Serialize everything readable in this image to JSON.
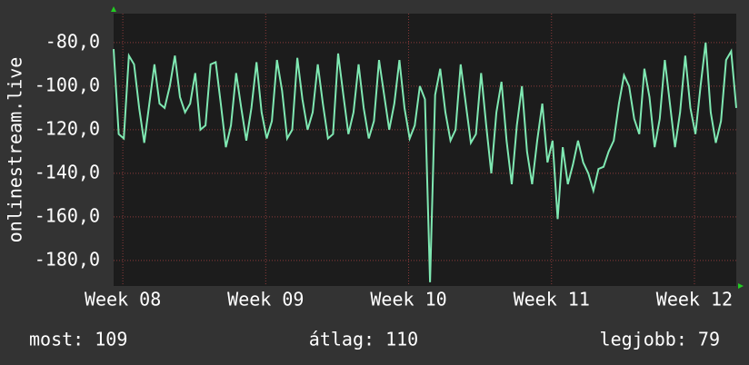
{
  "chart_data": {
    "type": "line",
    "y_label": "onlinestream.live",
    "color": "#7fe8b2",
    "grid": true,
    "ylim": [
      -191.7,
      -66.7
    ],
    "yticks": [
      {
        "value": -80,
        "label": "-80,0"
      },
      {
        "value": -100,
        "label": "-100,0"
      },
      {
        "value": -120,
        "label": "-120,0"
      },
      {
        "value": -140,
        "label": "-140,0"
      },
      {
        "value": -160,
        "label": "-160,0"
      },
      {
        "value": -180,
        "label": "-180,0"
      }
    ],
    "xlim": [
      0,
      30.5
    ],
    "xticks": [
      {
        "value": 0.45,
        "label": "Week 08"
      },
      {
        "value": 7.45,
        "label": "Week 09"
      },
      {
        "value": 14.45,
        "label": "Week 10"
      },
      {
        "value": 21.45,
        "label": "Week 11"
      },
      {
        "value": 28.45,
        "label": "Week 12"
      }
    ],
    "x": [
      0,
      0.25,
      0.5,
      0.75,
      1,
      1.25,
      1.5,
      1.75,
      2,
      2.25,
      2.5,
      2.75,
      3,
      3.25,
      3.5,
      3.75,
      4,
      4.25,
      4.5,
      4.75,
      5,
      5.25,
      5.5,
      5.75,
      6,
      6.25,
      6.5,
      6.75,
      7,
      7.25,
      7.5,
      7.75,
      8,
      8.25,
      8.5,
      8.75,
      9,
      9.25,
      9.5,
      9.75,
      10,
      10.25,
      10.5,
      10.75,
      11,
      11.25,
      11.5,
      11.75,
      12,
      12.25,
      12.5,
      12.75,
      13,
      13.25,
      13.5,
      13.75,
      14,
      14.25,
      14.5,
      14.75,
      15,
      15.25,
      15.5,
      15.75,
      16,
      16.25,
      16.5,
      16.75,
      17,
      17.25,
      17.5,
      17.75,
      18,
      18.25,
      18.5,
      18.75,
      19,
      19.25,
      19.5,
      19.75,
      20,
      20.25,
      20.5,
      20.75,
      21,
      21.25,
      21.5,
      21.75,
      22,
      22.25,
      22.5,
      22.75,
      23,
      23.25,
      23.5,
      23.75,
      24,
      24.25,
      24.5,
      24.75,
      25,
      25.25,
      25.5,
      25.75,
      26,
      26.25,
      26.5,
      26.75,
      27,
      27.25,
      27.5,
      27.75,
      28,
      28.25,
      28.5,
      28.75,
      29,
      29.25,
      29.5,
      29.75,
      30,
      30.25,
      30.5
    ],
    "values": [
      -83,
      -122,
      -124,
      -86,
      -90,
      -110,
      -126,
      -108,
      -90,
      -108,
      -110,
      -100,
      -86,
      -105,
      -112,
      -108,
      -94,
      -120,
      -118,
      -90,
      -89,
      -108,
      -128,
      -118,
      -94,
      -110,
      -125,
      -110,
      -89,
      -112,
      -124,
      -116,
      -88,
      -102,
      -124,
      -120,
      -87,
      -106,
      -120,
      -112,
      -90,
      -108,
      -124,
      -122,
      -85,
      -104,
      -122,
      -112,
      -90,
      -110,
      -124,
      -116,
      -88,
      -104,
      -120,
      -108,
      -88,
      -110,
      -124,
      -118,
      -100,
      -106,
      -190,
      -104,
      -92,
      -112,
      -125,
      -120,
      -90,
      -108,
      -126,
      -122,
      -94,
      -118,
      -140,
      -112,
      -98,
      -125,
      -145,
      -118,
      -100,
      -130,
      -145,
      -125,
      -108,
      -135,
      -125,
      -161,
      -128,
      -145,
      -136,
      -125,
      -135,
      -140,
      -148,
      -138,
      -137,
      -130,
      -125,
      -108,
      -95,
      -100,
      -115,
      -122,
      -92,
      -105,
      -128,
      -115,
      -88,
      -108,
      -128,
      -112,
      -86,
      -110,
      -122,
      -100,
      -80,
      -112,
      -126,
      -116,
      -88,
      -84,
      -110
    ],
    "annotations": [
      "most: 109",
      "átlag: 110",
      "legjobb: 79"
    ]
  }
}
